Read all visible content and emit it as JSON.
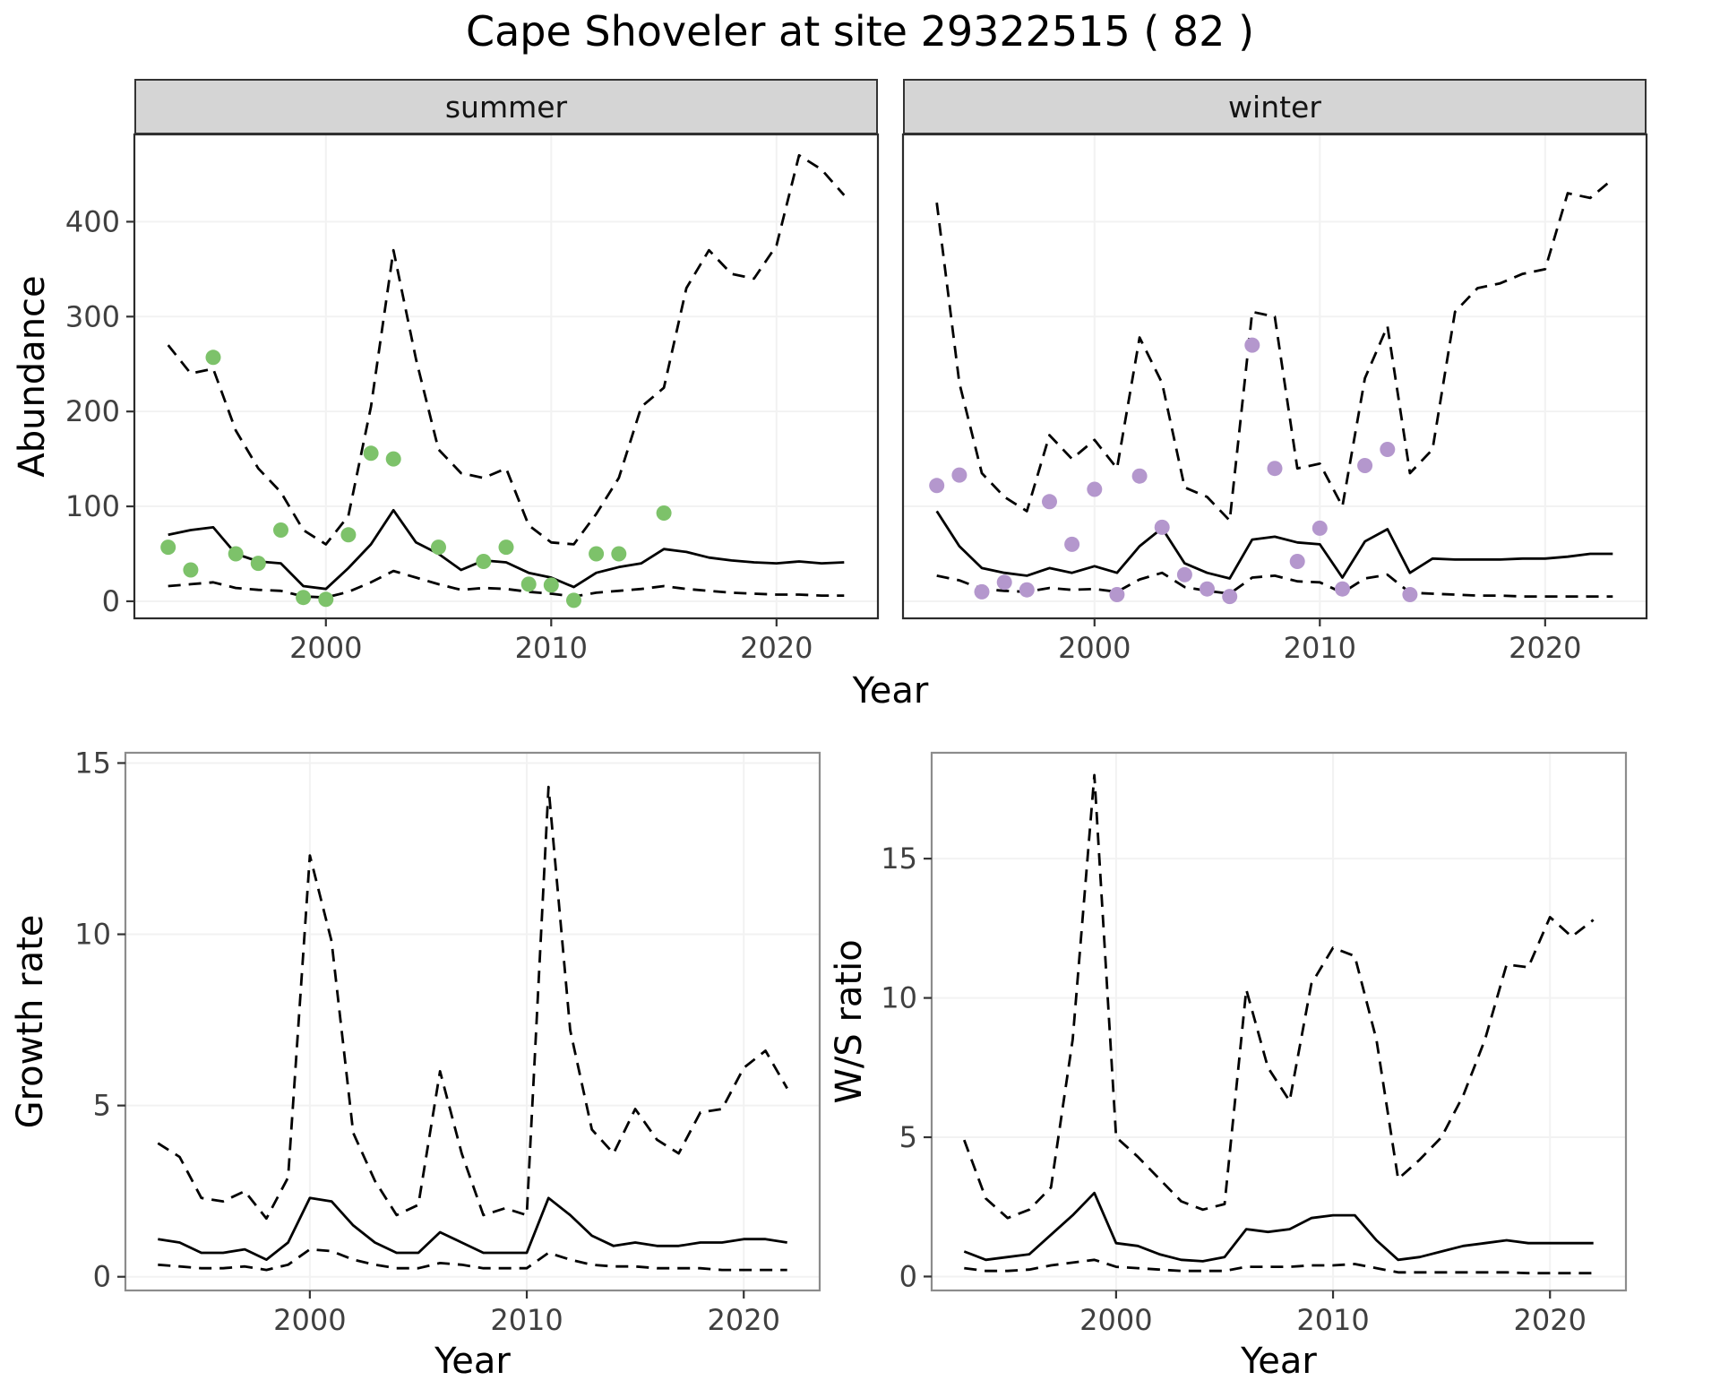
{
  "title": "Cape Shoveler at site 29322515 ( 82 )",
  "facets": {
    "summer": "summer",
    "winter": "winter"
  },
  "axes": {
    "abundance_label": "Abundance",
    "year_label": "Year",
    "growth_label": "Growth rate",
    "ws_label": "W/S ratio"
  },
  "colors": {
    "summer_points": "#7dc26a",
    "winter_points": "#b497cd",
    "line": "#000000",
    "strip_bg": "#d5d5d5",
    "grid": "#f2f2f2",
    "tick_text": "#404040",
    "background": "#ffffff"
  },
  "chart_data": [
    {
      "id": "summer-abundance",
      "type": "line",
      "facet": "summer",
      "title": "",
      "xlabel": "Year",
      "ylabel": "Abundance",
      "xlim": [
        1991.5,
        2024.5
      ],
      "ylim": [
        -18,
        492
      ],
      "xticks": [
        2000,
        2010,
        2020
      ],
      "yticks": [
        0,
        100,
        200,
        300,
        400
      ],
      "grid": "none",
      "legend": "none",
      "x": [
        1993,
        1994,
        1995,
        1996,
        1997,
        1998,
        1999,
        2000,
        2001,
        2002,
        2003,
        2004,
        2005,
        2006,
        2007,
        2008,
        2009,
        2010,
        2011,
        2012,
        2013,
        2014,
        2015,
        2016,
        2017,
        2018,
        2019,
        2020,
        2021,
        2022,
        2023
      ],
      "series": [
        {
          "name": "median",
          "linestyle": "solid",
          "values": [
            70,
            75,
            78,
            50,
            42,
            40,
            16,
            13,
            35,
            60,
            96,
            62,
            50,
            33,
            43,
            41,
            30,
            25,
            15,
            30,
            36,
            40,
            55,
            52,
            46,
            43,
            41,
            40,
            42,
            40,
            41
          ]
        },
        {
          "name": "upper95",
          "linestyle": "dashed",
          "values": [
            270,
            240,
            245,
            180,
            140,
            115,
            75,
            60,
            90,
            205,
            370,
            255,
            160,
            135,
            130,
            140,
            80,
            62,
            60,
            92,
            130,
            205,
            225,
            330,
            370,
            345,
            340,
            375,
            470,
            455,
            428
          ]
        },
        {
          "name": "lower95",
          "linestyle": "dashed",
          "values": [
            16,
            18,
            20,
            14,
            12,
            11,
            5,
            4,
            10,
            20,
            32,
            25,
            18,
            12,
            14,
            13,
            10,
            8,
            5,
            9,
            11,
            13,
            16,
            13,
            11,
            9,
            8,
            7,
            7,
            6,
            6
          ]
        }
      ],
      "points": {
        "name": "summer-observations",
        "color": "#7dc26a",
        "x": [
          1993,
          1994,
          1995,
          1996,
          1997,
          1998,
          1999,
          2000,
          2001,
          2002,
          2003,
          2005,
          2007,
          2008,
          2009,
          2010,
          2011,
          2012,
          2013,
          2015
        ],
        "y": [
          57,
          33,
          257,
          50,
          40,
          75,
          4,
          2,
          70,
          156,
          150,
          57,
          42,
          57,
          18,
          17,
          1,
          50,
          50,
          93
        ]
      }
    },
    {
      "id": "winter-abundance",
      "type": "line",
      "facet": "winter",
      "title": "",
      "xlabel": "Year",
      "ylabel": "Abundance",
      "xlim": [
        1991.5,
        2024.5
      ],
      "ylim": [
        -18,
        492
      ],
      "xticks": [
        2000,
        2010,
        2020
      ],
      "yticks": [
        0,
        100,
        200,
        300,
        400
      ],
      "grid": "none",
      "legend": "none",
      "x": [
        1993,
        1994,
        1995,
        1996,
        1997,
        1998,
        1999,
        2000,
        2001,
        2002,
        2003,
        2004,
        2005,
        2006,
        2007,
        2008,
        2009,
        2010,
        2011,
        2012,
        2013,
        2014,
        2015,
        2016,
        2017,
        2018,
        2019,
        2020,
        2021,
        2022,
        2023
      ],
      "series": [
        {
          "name": "median",
          "linestyle": "solid",
          "values": [
            95,
            58,
            35,
            30,
            27,
            35,
            30,
            37,
            30,
            58,
            77,
            40,
            30,
            24,
            65,
            68,
            62,
            60,
            25,
            63,
            76,
            30,
            45,
            44,
            44,
            44,
            45,
            45,
            47,
            50,
            50
          ]
        },
        {
          "name": "upper95",
          "linestyle": "dashed",
          "values": [
            420,
            230,
            135,
            110,
            95,
            175,
            150,
            170,
            140,
            278,
            230,
            120,
            110,
            85,
            305,
            300,
            140,
            145,
            100,
            235,
            290,
            135,
            160,
            305,
            330,
            335,
            345,
            350,
            430,
            425,
            445
          ]
        },
        {
          "name": "lower95",
          "linestyle": "dashed",
          "values": [
            27,
            22,
            13,
            11,
            10,
            14,
            12,
            13,
            10,
            23,
            30,
            15,
            11,
            8,
            25,
            27,
            21,
            20,
            9,
            24,
            28,
            9,
            8,
            7,
            6,
            6,
            5,
            5,
            5,
            5,
            5
          ]
        }
      ],
      "points": {
        "name": "winter-observations",
        "color": "#b497cd",
        "x": [
          1993,
          1994,
          1995,
          1996,
          1997,
          1998,
          1999,
          2000,
          2001,
          2002,
          2003,
          2004,
          2005,
          2006,
          2007,
          2008,
          2009,
          2010,
          2011,
          2012,
          2013,
          2014
        ],
        "y": [
          122,
          133,
          10,
          20,
          12,
          105,
          60,
          118,
          7,
          132,
          78,
          28,
          13,
          5,
          270,
          140,
          42,
          77,
          13,
          143,
          160,
          7
        ]
      }
    },
    {
      "id": "growth-rate",
      "type": "line",
      "facet": "",
      "title": "",
      "xlabel": "Year",
      "ylabel": "Growth rate",
      "xlim": [
        1991.5,
        2023.5
      ],
      "ylim": [
        -0.4,
        15.3
      ],
      "xticks": [
        2000,
        2010,
        2020
      ],
      "yticks": [
        0,
        5,
        10,
        15
      ],
      "grid": "none",
      "legend": "none",
      "x": [
        1993,
        1994,
        1995,
        1996,
        1997,
        1998,
        1999,
        2000,
        2001,
        2002,
        2003,
        2004,
        2005,
        2006,
        2007,
        2008,
        2009,
        2010,
        2011,
        2012,
        2013,
        2014,
        2015,
        2016,
        2017,
        2018,
        2019,
        2020,
        2021,
        2022
      ],
      "series": [
        {
          "name": "median",
          "linestyle": "solid",
          "values": [
            1.1,
            1.0,
            0.7,
            0.7,
            0.8,
            0.5,
            1.0,
            2.3,
            2.2,
            1.5,
            1.0,
            0.7,
            0.7,
            1.3,
            1.0,
            0.7,
            0.7,
            0.7,
            2.3,
            1.8,
            1.2,
            0.9,
            1.0,
            0.9,
            0.9,
            1.0,
            1.0,
            1.1,
            1.1,
            1.0
          ]
        },
        {
          "name": "upper95",
          "linestyle": "dashed",
          "values": [
            3.9,
            3.5,
            2.3,
            2.2,
            2.5,
            1.7,
            2.9,
            12.3,
            9.8,
            4.2,
            2.8,
            1.8,
            2.1,
            6.0,
            3.6,
            1.8,
            2.0,
            1.8,
            14.3,
            7.2,
            4.3,
            3.6,
            4.9,
            4.0,
            3.6,
            4.8,
            4.9,
            6.1,
            6.6,
            5.5
          ]
        },
        {
          "name": "lower95",
          "linestyle": "dashed",
          "values": [
            0.35,
            0.3,
            0.25,
            0.25,
            0.3,
            0.2,
            0.35,
            0.8,
            0.75,
            0.5,
            0.35,
            0.25,
            0.25,
            0.4,
            0.35,
            0.25,
            0.25,
            0.25,
            0.7,
            0.5,
            0.35,
            0.3,
            0.3,
            0.25,
            0.25,
            0.25,
            0.2,
            0.2,
            0.2,
            0.2
          ]
        }
      ]
    },
    {
      "id": "ws-ratio",
      "type": "line",
      "facet": "",
      "title": "",
      "xlabel": "Year",
      "ylabel": "W/S ratio",
      "xlim": [
        1991.5,
        2023.5
      ],
      "ylim": [
        -0.5,
        18.8
      ],
      "xticks": [
        2000,
        2010,
        2020
      ],
      "yticks": [
        0,
        5,
        10,
        15
      ],
      "grid": "none",
      "legend": "none",
      "x": [
        1993,
        1994,
        1995,
        1996,
        1997,
        1998,
        1999,
        2000,
        2001,
        2002,
        2003,
        2004,
        2005,
        2006,
        2007,
        2008,
        2009,
        2010,
        2011,
        2012,
        2013,
        2014,
        2015,
        2016,
        2017,
        2018,
        2019,
        2020,
        2021,
        2022
      ],
      "series": [
        {
          "name": "median",
          "linestyle": "solid",
          "values": [
            0.9,
            0.6,
            0.7,
            0.8,
            1.5,
            2.2,
            3.0,
            1.2,
            1.1,
            0.8,
            0.6,
            0.55,
            0.7,
            1.7,
            1.6,
            1.7,
            2.1,
            2.2,
            2.2,
            1.3,
            0.6,
            0.7,
            0.9,
            1.1,
            1.2,
            1.3,
            1.2,
            1.2,
            1.2,
            1.2
          ]
        },
        {
          "name": "upper95",
          "linestyle": "dashed",
          "values": [
            4.9,
            2.8,
            2.1,
            2.4,
            3.2,
            8.5,
            18.0,
            5.0,
            4.3,
            3.5,
            2.7,
            2.4,
            2.6,
            10.3,
            7.5,
            6.3,
            10.5,
            11.8,
            11.5,
            8.5,
            3.5,
            4.2,
            5.0,
            6.5,
            8.5,
            11.2,
            11.1,
            12.9,
            12.2,
            12.8
          ]
        },
        {
          "name": "lower95",
          "linestyle": "dashed",
          "values": [
            0.3,
            0.2,
            0.2,
            0.25,
            0.4,
            0.5,
            0.6,
            0.35,
            0.3,
            0.25,
            0.2,
            0.2,
            0.2,
            0.35,
            0.35,
            0.35,
            0.4,
            0.4,
            0.45,
            0.3,
            0.15,
            0.15,
            0.15,
            0.15,
            0.15,
            0.15,
            0.12,
            0.12,
            0.12,
            0.12
          ]
        }
      ]
    }
  ]
}
